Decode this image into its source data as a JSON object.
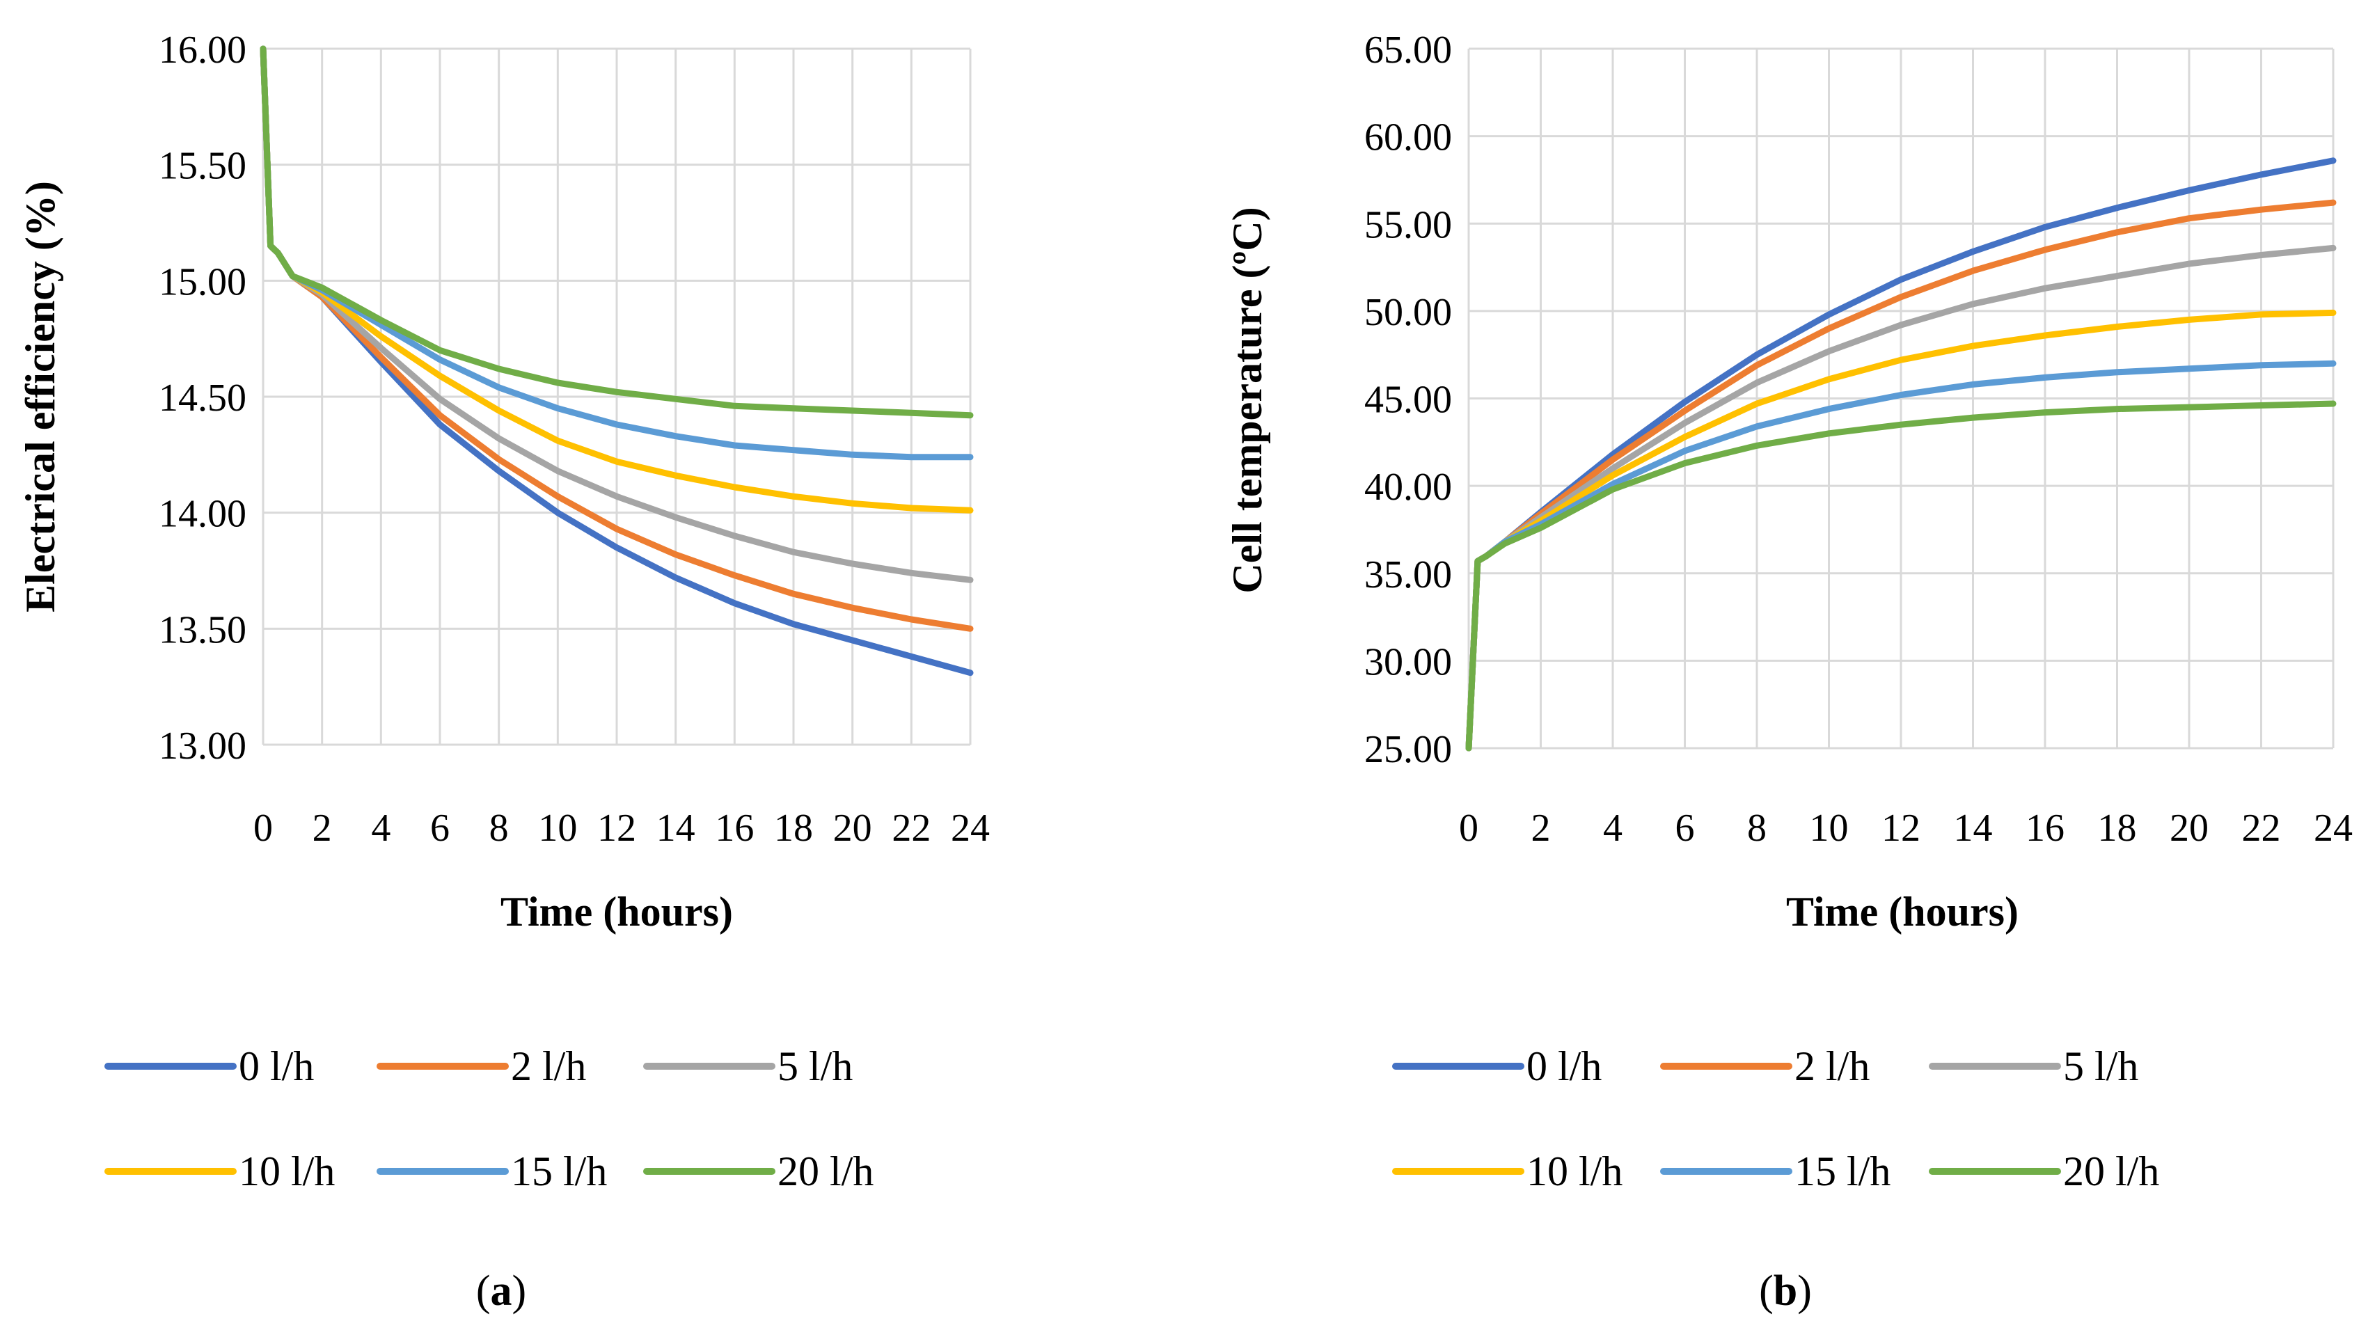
{
  "colors": {
    "0 l/h": "#4472C4",
    "2 l/h": "#ED7D31",
    "5 l/h": "#A5A5A5",
    "10 l/h": "#FFC000",
    "15 l/h": "#5B9BD5",
    "20 l/h": "#70AD47"
  },
  "chart_data": [
    {
      "type": "line",
      "panel": "a",
      "caption_letter": "a",
      "title": "",
      "xlabel": "Time (hours)",
      "ylabel": "Electrical efficiency (%)",
      "xlim": [
        0,
        24
      ],
      "ylim": [
        13.0,
        16.0
      ],
      "xticks": [
        "0",
        "2",
        "4",
        "6",
        "8",
        "10",
        "12",
        "14",
        "16",
        "18",
        "20",
        "22",
        "24"
      ],
      "yticks": [
        "16.00",
        "15.50",
        "15.00",
        "14.50",
        "14.00",
        "13.50",
        "13.00"
      ],
      "grid": true,
      "legend": "bottom",
      "x": [
        0,
        0.25,
        0.5,
        1,
        2,
        4,
        6,
        8,
        10,
        12,
        14,
        16,
        18,
        20,
        22,
        24
      ],
      "series": [
        {
          "name": "0 l/h",
          "values": [
            16.0,
            15.15,
            15.12,
            15.02,
            14.93,
            14.65,
            14.38,
            14.18,
            14.0,
            13.85,
            13.72,
            13.61,
            13.52,
            13.45,
            13.38,
            13.31
          ]
        },
        {
          "name": "2 l/h",
          "values": [
            16.0,
            15.15,
            15.12,
            15.02,
            14.93,
            14.67,
            14.42,
            14.23,
            14.07,
            13.93,
            13.82,
            13.73,
            13.65,
            13.59,
            13.54,
            13.5
          ]
        },
        {
          "name": "5 l/h",
          "values": [
            16.0,
            15.15,
            15.12,
            15.02,
            14.94,
            14.71,
            14.49,
            14.32,
            14.18,
            14.07,
            13.98,
            13.9,
            13.83,
            13.78,
            13.74,
            13.71
          ]
        },
        {
          "name": "10 l/h",
          "values": [
            16.0,
            15.15,
            15.12,
            15.02,
            14.95,
            14.76,
            14.59,
            14.44,
            14.31,
            14.22,
            14.16,
            14.11,
            14.07,
            14.04,
            14.02,
            14.01
          ]
        },
        {
          "name": "15 l/h",
          "values": [
            16.0,
            15.15,
            15.12,
            15.02,
            14.96,
            14.81,
            14.66,
            14.54,
            14.45,
            14.38,
            14.33,
            14.29,
            14.27,
            14.25,
            14.24,
            14.24
          ]
        },
        {
          "name": "20 l/h",
          "values": [
            16.0,
            15.15,
            15.12,
            15.02,
            14.97,
            14.83,
            14.7,
            14.62,
            14.56,
            14.52,
            14.49,
            14.46,
            14.45,
            14.44,
            14.43,
            14.42
          ]
        }
      ]
    },
    {
      "type": "line",
      "panel": "b",
      "caption_letter": "b",
      "title": "",
      "xlabel": "Time (hours)",
      "ylabel": "Cell temperature (ºC)",
      "xlim": [
        0,
        24
      ],
      "ylim": [
        25.0,
        65.0
      ],
      "xticks": [
        "0",
        "2",
        "4",
        "6",
        "8",
        "10",
        "12",
        "14",
        "16",
        "18",
        "20",
        "22",
        "24"
      ],
      "yticks": [
        "65.00",
        "60.00",
        "55.00",
        "50.00",
        "45.00",
        "40.00",
        "35.00",
        "30.00",
        "25.00"
      ],
      "grid": true,
      "legend": "bottom",
      "x": [
        0,
        0.25,
        0.5,
        1,
        2,
        4,
        6,
        8,
        10,
        12,
        14,
        16,
        18,
        20,
        22,
        24
      ],
      "series": [
        {
          "name": "0 l/h",
          "values": [
            25.0,
            35.7,
            36.0,
            36.8,
            38.5,
            41.8,
            44.8,
            47.5,
            49.8,
            51.8,
            53.4,
            54.8,
            55.9,
            56.9,
            57.8,
            58.6
          ]
        },
        {
          "name": "2 l/h",
          "values": [
            25.0,
            35.7,
            36.0,
            36.8,
            38.4,
            41.5,
            44.3,
            46.9,
            49.0,
            50.8,
            52.3,
            53.5,
            54.5,
            55.3,
            55.8,
            56.2
          ]
        },
        {
          "name": "5 l/h",
          "values": [
            25.0,
            35.7,
            36.0,
            36.8,
            38.2,
            41.0,
            43.6,
            45.9,
            47.7,
            49.2,
            50.4,
            51.3,
            52.0,
            52.7,
            53.2,
            53.6
          ]
        },
        {
          "name": "10 l/h",
          "values": [
            25.0,
            35.7,
            36.0,
            36.8,
            38.0,
            40.6,
            42.8,
            44.7,
            46.1,
            47.2,
            48.0,
            48.6,
            49.1,
            49.5,
            49.8,
            49.9
          ]
        },
        {
          "name": "15 l/h",
          "values": [
            25.0,
            35.7,
            36.0,
            36.8,
            37.8,
            40.1,
            42.0,
            43.4,
            44.4,
            45.2,
            45.8,
            46.2,
            46.5,
            46.7,
            46.9,
            47.0
          ]
        },
        {
          "name": "20 l/h",
          "values": [
            25.0,
            35.7,
            36.0,
            36.7,
            37.6,
            39.8,
            41.3,
            42.3,
            43.0,
            43.5,
            43.9,
            44.2,
            44.4,
            44.5,
            44.6,
            44.7
          ]
        }
      ]
    }
  ]
}
